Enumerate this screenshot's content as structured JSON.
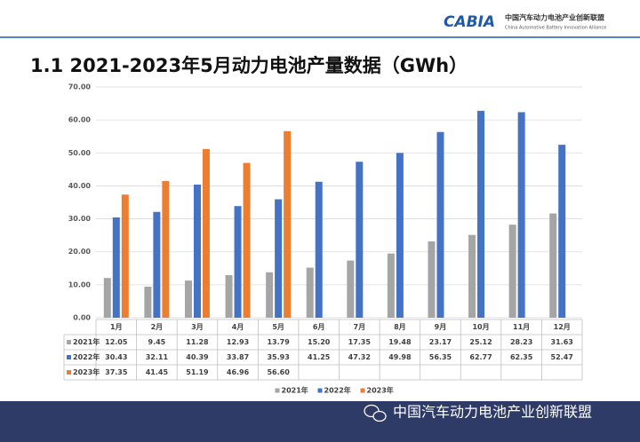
{
  "header": {
    "logo": "CABIA",
    "org_cn": "中国汽车动力电池产业创新联盟",
    "org_en": "China Automotive Battery Innovation Alliance"
  },
  "chart_data": {
    "type": "bar",
    "title": "1.1 2021-2023年5月动力电池产量数据（GWh）",
    "categories": [
      "1月",
      "2月",
      "3月",
      "4月",
      "5月",
      "6月",
      "7月",
      "8月",
      "9月",
      "10月",
      "11月",
      "12月"
    ],
    "series": [
      {
        "name": "2021年",
        "color": "#a5a5a5",
        "values": [
          12.05,
          9.45,
          11.28,
          12.93,
          13.79,
          15.2,
          17.35,
          19.48,
          23.17,
          25.12,
          28.23,
          31.63
        ],
        "value_labels": [
          "12.05",
          "9.45",
          "11.28",
          "12.93",
          "13.79",
          "15.20",
          "17.35",
          "19.48",
          "23.17",
          "25.12",
          "28.23",
          "31.63"
        ]
      },
      {
        "name": "2022年",
        "color": "#4472c4",
        "values": [
          30.43,
          32.11,
          40.39,
          33.87,
          35.93,
          41.25,
          47.32,
          49.98,
          56.35,
          62.77,
          62.35,
          52.47
        ],
        "value_labels": [
          "30.43",
          "32.11",
          "40.39",
          "33.87",
          "35.93",
          "41.25",
          "47.32",
          "49.98",
          "56.35",
          "62.77",
          "62.35",
          "52.47"
        ]
      },
      {
        "name": "2023年",
        "color": "#ed7d31",
        "values": [
          37.35,
          41.45,
          51.19,
          46.96,
          56.6,
          null,
          null,
          null,
          null,
          null,
          null,
          null
        ],
        "value_labels": [
          "37.35",
          "41.45",
          "51.19",
          "46.96",
          "56.60",
          null,
          null,
          null,
          null,
          null,
          null,
          null
        ]
      }
    ],
    "ylim": [
      0,
      70
    ],
    "yticks": [
      {
        "value": 0,
        "label": "0.00"
      },
      {
        "value": 10,
        "label": "10.00"
      },
      {
        "value": 20,
        "label": "20.00"
      },
      {
        "value": 30,
        "label": "30.00"
      },
      {
        "value": 40,
        "label": "40.00"
      },
      {
        "value": 50,
        "label": "50.00"
      },
      {
        "value": 60,
        "label": "60.00"
      },
      {
        "value": 70,
        "label": "70.00"
      }
    ],
    "grid": true
  },
  "footer": {
    "text": "中国汽车动力电池产业创新联盟"
  }
}
